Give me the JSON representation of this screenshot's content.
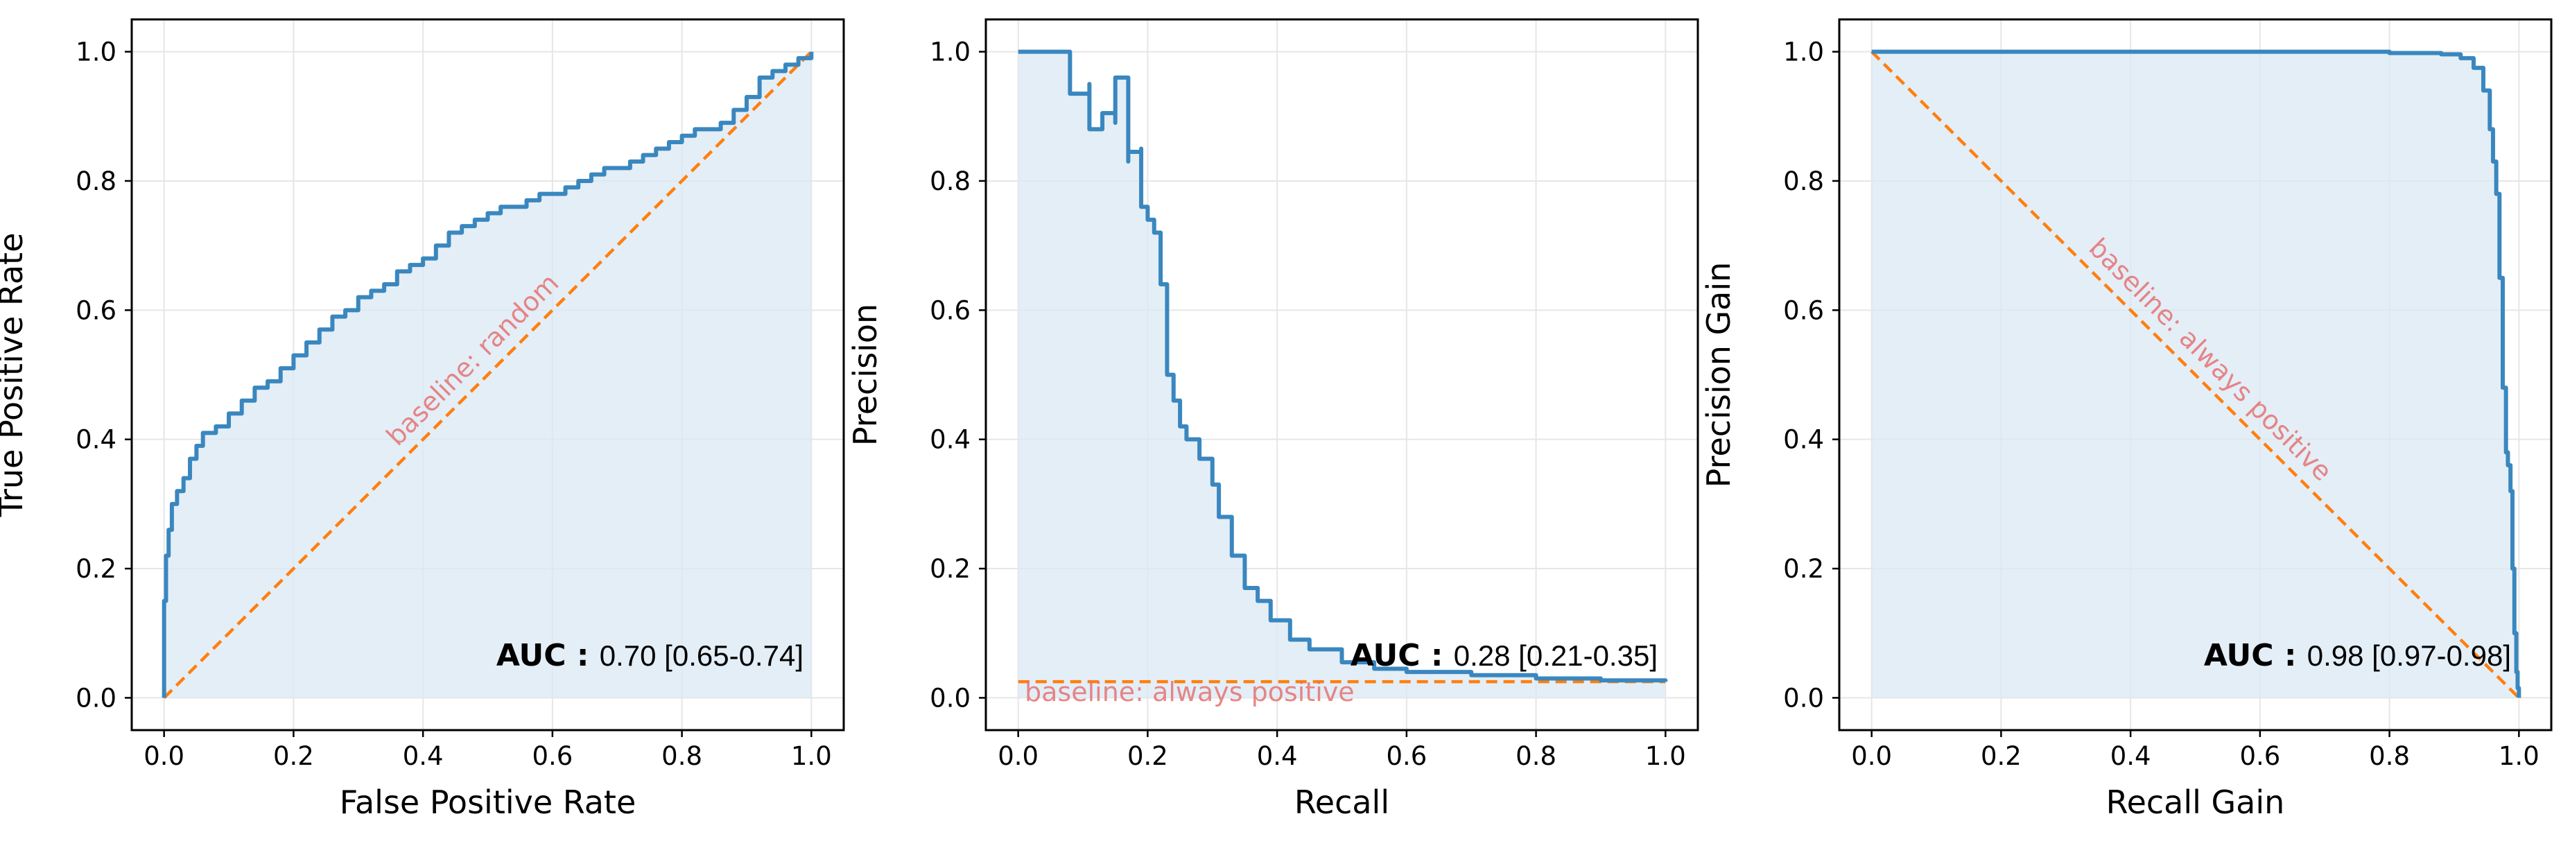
{
  "colors": {
    "curve": "#3a87bf",
    "fill": "#dbe8f4",
    "baseline": "#ff7f0e",
    "baseline_text": "#e57373",
    "grid": "#e6e6e6"
  },
  "chart_data": [
    {
      "type": "line",
      "xlabel": "False Positive Rate",
      "ylabel": "True Positive Rate",
      "xlim": [
        -0.05,
        1.05
      ],
      "ylim": [
        -0.05,
        1.05
      ],
      "xticks": [
        "0.0",
        "0.2",
        "0.4",
        "0.6",
        "0.8",
        "1.0"
      ],
      "yticks": [
        "0.0",
        "0.2",
        "0.4",
        "0.6",
        "0.8",
        "1.0"
      ],
      "grid": true,
      "fill_under_curve": true,
      "curve": {
        "x": [
          0.0,
          0.0,
          0.003,
          0.007,
          0.012,
          0.02,
          0.03,
          0.04,
          0.05,
          0.06,
          0.07,
          0.08,
          0.1,
          0.12,
          0.14,
          0.16,
          0.18,
          0.2,
          0.22,
          0.24,
          0.26,
          0.28,
          0.3,
          0.32,
          0.34,
          0.36,
          0.38,
          0.4,
          0.42,
          0.44,
          0.46,
          0.48,
          0.5,
          0.52,
          0.54,
          0.56,
          0.58,
          0.6,
          0.62,
          0.64,
          0.66,
          0.68,
          0.7,
          0.72,
          0.74,
          0.76,
          0.78,
          0.8,
          0.82,
          0.84,
          0.86,
          0.88,
          0.9,
          0.92,
          0.94,
          0.96,
          0.98,
          1.0
        ],
        "y": [
          0.0,
          0.15,
          0.22,
          0.26,
          0.3,
          0.32,
          0.34,
          0.37,
          0.39,
          0.41,
          0.41,
          0.42,
          0.44,
          0.46,
          0.48,
          0.49,
          0.51,
          0.53,
          0.55,
          0.57,
          0.59,
          0.6,
          0.62,
          0.63,
          0.64,
          0.66,
          0.67,
          0.68,
          0.7,
          0.72,
          0.73,
          0.74,
          0.75,
          0.76,
          0.76,
          0.77,
          0.78,
          0.78,
          0.79,
          0.8,
          0.81,
          0.82,
          0.82,
          0.83,
          0.84,
          0.85,
          0.86,
          0.87,
          0.88,
          0.88,
          0.89,
          0.91,
          0.93,
          0.96,
          0.97,
          0.98,
          0.99,
          1.0
        ]
      },
      "baseline": {
        "x": [
          0.0,
          1.0
        ],
        "y": [
          0.0,
          1.0
        ],
        "label": "baseline: random",
        "label_position": "center-diagonal"
      },
      "auc": {
        "label": "AUC :",
        "value": "0.70 [0.65-0.74]",
        "position": "bottom-right"
      }
    },
    {
      "type": "line",
      "xlabel": "Recall",
      "ylabel": "Precision",
      "xlim": [
        -0.05,
        1.05
      ],
      "ylim": [
        -0.05,
        1.05
      ],
      "xticks": [
        "0.0",
        "0.2",
        "0.4",
        "0.6",
        "0.8",
        "1.0"
      ],
      "yticks": [
        "0.0",
        "0.2",
        "0.4",
        "0.6",
        "0.8",
        "1.0"
      ],
      "grid": true,
      "fill_under_curve": true,
      "curve": {
        "x": [
          0.0,
          0.08,
          0.08,
          0.11,
          0.11,
          0.13,
          0.13,
          0.15,
          0.15,
          0.17,
          0.17,
          0.19,
          0.19,
          0.2,
          0.21,
          0.22,
          0.23,
          0.23,
          0.24,
          0.25,
          0.26,
          0.28,
          0.3,
          0.31,
          0.33,
          0.35,
          0.37,
          0.39,
          0.42,
          0.45,
          0.5,
          0.55,
          0.6,
          0.7,
          0.8,
          0.9,
          1.0
        ],
        "y": [
          1.0,
          1.0,
          0.935,
          0.95,
          0.88,
          0.9,
          0.905,
          0.89,
          0.96,
          0.83,
          0.845,
          0.85,
          0.76,
          0.74,
          0.72,
          0.64,
          0.62,
          0.5,
          0.46,
          0.42,
          0.4,
          0.37,
          0.33,
          0.28,
          0.22,
          0.17,
          0.15,
          0.12,
          0.09,
          0.075,
          0.055,
          0.045,
          0.04,
          0.035,
          0.03,
          0.027,
          0.025
        ]
      },
      "baseline": {
        "x": [
          0.0,
          1.0
        ],
        "y": [
          0.025,
          0.025
        ],
        "label": "baseline: always positive",
        "label_position": "bottom-left"
      },
      "auc": {
        "label": "AUC :",
        "value": "0.28 [0.21-0.35]",
        "position": "bottom-right"
      }
    },
    {
      "type": "line",
      "xlabel": "Recall Gain",
      "ylabel": "Precision Gain",
      "xlim": [
        -0.05,
        1.05
      ],
      "ylim": [
        -0.05,
        1.05
      ],
      "xticks": [
        "0.0",
        "0.2",
        "0.4",
        "0.6",
        "0.8",
        "1.0"
      ],
      "yticks": [
        "0.0",
        "0.2",
        "0.4",
        "0.6",
        "0.8",
        "1.0"
      ],
      "grid": true,
      "fill_under_curve": true,
      "curve": {
        "x": [
          0.0,
          0.3,
          0.6,
          0.7,
          0.8,
          0.88,
          0.91,
          0.93,
          0.945,
          0.955,
          0.96,
          0.965,
          0.97,
          0.975,
          0.98,
          0.983,
          0.987,
          0.99,
          0.993,
          0.996,
          0.998,
          1.0,
          1.0
        ],
        "y": [
          1.0,
          1.0,
          1.0,
          1.0,
          0.998,
          0.996,
          0.99,
          0.975,
          0.94,
          0.88,
          0.83,
          0.78,
          0.65,
          0.48,
          0.38,
          0.36,
          0.32,
          0.2,
          0.1,
          0.04,
          0.015,
          0.005,
          0.0
        ]
      },
      "baseline": {
        "x": [
          0.0,
          1.0
        ],
        "y": [
          1.0,
          0.0
        ],
        "label": "baseline: always positive",
        "label_position": "center-diagonal"
      },
      "auc": {
        "label": "AUC :",
        "value": "0.98 [0.97-0.98]",
        "position": "bottom-right"
      }
    }
  ]
}
